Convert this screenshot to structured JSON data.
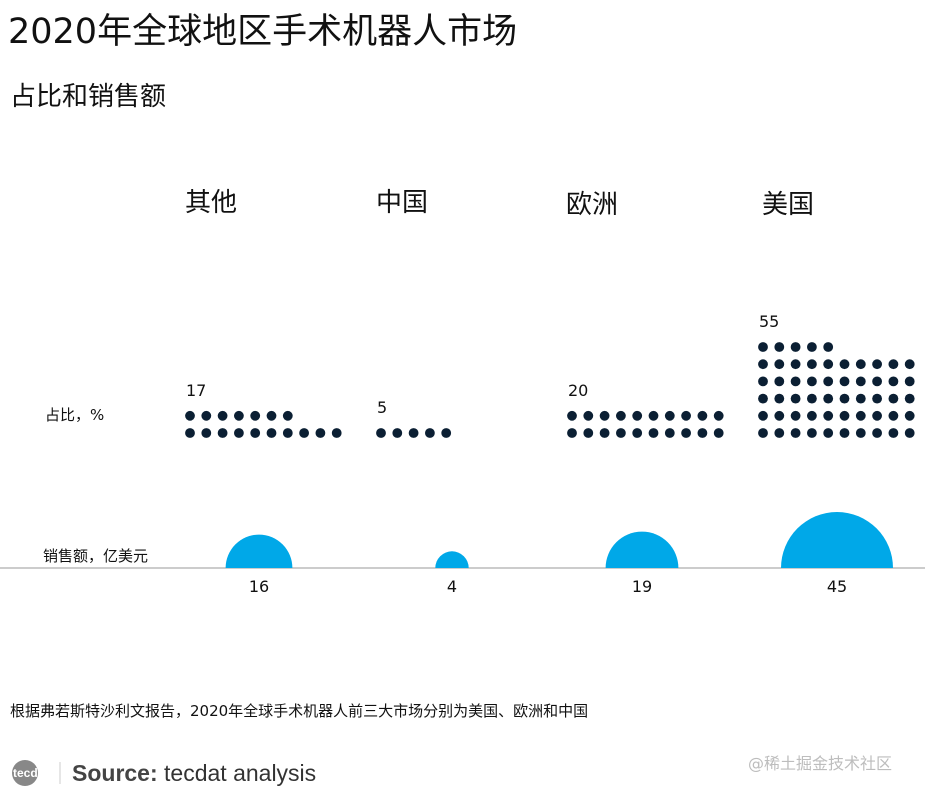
{
  "title": "2020年全球地区手术机器人市场",
  "subtitle": "占比和销售额",
  "row_labels": {
    "share": "占比，%",
    "sales": "销售额，亿美元"
  },
  "chart_data": {
    "type": "dot-bubble",
    "categories": [
      "其他",
      "中国",
      "欧洲",
      "美国"
    ],
    "series": [
      {
        "name": "占比，%",
        "values": [
          17,
          5,
          20,
          55
        ]
      },
      {
        "name": "销售额，亿美元",
        "values": [
          16,
          4,
          19,
          45
        ]
      }
    ],
    "dot_color": "#0b1f33",
    "bubble_color": "#00a8e8"
  },
  "footnote": "根据弗若斯特沙利文报告，2020年全球手术机器人前三大市场分别为美国、欧洲和中国",
  "source": {
    "label": "Source:",
    "text": "tecdat analysis"
  },
  "logo_text": "tecdat",
  "watermark": "@稀土掘金技术社区"
}
